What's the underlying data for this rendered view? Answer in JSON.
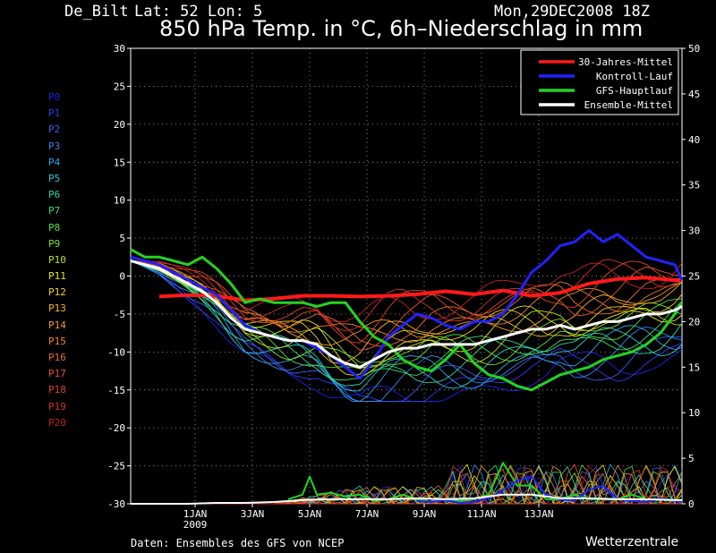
{
  "header": {
    "station": "De_Bilt",
    "coords": "Lat: 52 Lon: 5",
    "runtime": "Mon,29DEC2008 18Z",
    "title": "850 hPa Temp. in °C, 6h–Niederschlag in mm"
  },
  "footer": {
    "source": "Daten: Ensembles des GFS von NCEP",
    "brand": "Wetterzentrale"
  },
  "members": [
    {
      "label": "P0",
      "color": "#2020e8"
    },
    {
      "label": "P1",
      "color": "#2f3cf0"
    },
    {
      "label": "P2",
      "color": "#3a5cf4"
    },
    {
      "label": "P3",
      "color": "#2e86ec"
    },
    {
      "label": "P4",
      "color": "#2aa6e6"
    },
    {
      "label": "P5",
      "color": "#26c8d6"
    },
    {
      "label": "P6",
      "color": "#2ad8a6"
    },
    {
      "label": "P7",
      "color": "#3cdc6a"
    },
    {
      "label": "P8",
      "color": "#4ee040"
    },
    {
      "label": "P9",
      "color": "#7ae028"
    },
    {
      "label": "P10",
      "color": "#b8e41e"
    },
    {
      "label": "P11",
      "color": "#e6e41c"
    },
    {
      "label": "P12",
      "color": "#f0d020"
    },
    {
      "label": "P13",
      "color": "#f4b424"
    },
    {
      "label": "P14",
      "color": "#f49a2a"
    },
    {
      "label": "P15",
      "color": "#f0822c"
    },
    {
      "label": "P16",
      "color": "#ec6a2c"
    },
    {
      "label": "P17",
      "color": "#e6542a"
    },
    {
      "label": "P18",
      "color": "#de4228"
    },
    {
      "label": "P19",
      "color": "#d23226"
    },
    {
      "label": "P20",
      "color": "#c42222"
    }
  ],
  "chart_data": {
    "type": "line",
    "grid": true,
    "legend_position": "top-right",
    "x_range": [
      0,
      19.25
    ],
    "x_unit": "days after 29DEC2008 18Z",
    "x_ticks": [
      {
        "label": "1JAN",
        "x": 2.25
      },
      {
        "label": "3JAN",
        "x": 4.25
      },
      {
        "label": "5JAN",
        "x": 6.25
      },
      {
        "label": "7JAN",
        "x": 8.25
      },
      {
        "label": "9JAN",
        "x": 10.25
      },
      {
        "label": "11JAN",
        "x": 12.25
      },
      {
        "label": "13JAN",
        "x": 14.25
      }
    ],
    "x_year_label": {
      "label": "2009",
      "x": 2.25
    },
    "y_left": {
      "range": [
        -30,
        30
      ],
      "ticks": [
        -30,
        -25,
        -20,
        -15,
        -10,
        -5,
        0,
        5,
        10,
        15,
        20,
        25,
        30
      ]
    },
    "y_right": {
      "range": [
        0,
        50
      ],
      "ticks": [
        0,
        5,
        10,
        15,
        20,
        25,
        30,
        35,
        40,
        45,
        50
      ]
    },
    "legend": [
      {
        "label": "30-Jahres-Mittel",
        "color": "#ff1a1a"
      },
      {
        "label": "Kontroll-Lauf",
        "color": "#2222ff"
      },
      {
        "label": "GFS-Hauptlauf",
        "color": "#22d422"
      },
      {
        "label": "Ensemble-Mittel",
        "color": "#ffffff"
      }
    ],
    "series": [
      {
        "name": "30-Jahres-Mittel",
        "color": "#ff1a1a",
        "width": 4,
        "axis": "left",
        "x": [
          1,
          2,
          3,
          4,
          5,
          6,
          7,
          8,
          9,
          10,
          11,
          12,
          13,
          14,
          15,
          16,
          17,
          18,
          19.2
        ],
        "y": [
          -2.7,
          -2.5,
          -2.6,
          -3.2,
          -3.0,
          -2.6,
          -2.6,
          -2.7,
          -2.6,
          -2.4,
          -2.0,
          -2.4,
          -1.9,
          -2.6,
          -2.2,
          -1.0,
          -0.4,
          -0.2,
          -0.6
        ]
      },
      {
        "name": "Kontroll-Lauf",
        "color": "#2222ff",
        "width": 3,
        "axis": "left",
        "x": [
          0,
          0.5,
          1,
          1.5,
          2,
          2.5,
          3,
          3.5,
          4,
          4.5,
          5,
          5.5,
          6,
          6.5,
          7,
          7.5,
          8,
          8.5,
          9,
          9.5,
          10,
          10.5,
          11,
          11.5,
          12,
          12.5,
          13,
          13.5,
          14,
          14.5,
          15,
          15.5,
          16,
          16.5,
          17,
          17.5,
          18,
          18.5,
          19,
          19.25
        ],
        "y": [
          2.5,
          2.0,
          1.5,
          0.5,
          -0.5,
          -1.5,
          -2.5,
          -4.5,
          -6.5,
          -7.5,
          -8.0,
          -8.5,
          -8.5,
          -9.5,
          -10.5,
          -12.0,
          -13.5,
          -11.0,
          -8.0,
          -6.5,
          -5.0,
          -5.5,
          -6.5,
          -7.0,
          -6.0,
          -6.0,
          -5.0,
          -2.5,
          0.5,
          2.0,
          4.0,
          4.5,
          6.0,
          4.5,
          5.5,
          4.0,
          2.5,
          2.0,
          1.5,
          -0.5
        ]
      },
      {
        "name": "GFS-Hauptlauf",
        "color": "#22d422",
        "width": 3,
        "axis": "left",
        "x": [
          0,
          0.5,
          1,
          1.5,
          2,
          2.5,
          3,
          3.5,
          4,
          4.5,
          5,
          5.5,
          6,
          6.5,
          7,
          7.5,
          8,
          8.5,
          9,
          9.5,
          10,
          10.5,
          11,
          11.5,
          12,
          12.5,
          13,
          13.5,
          14,
          14.5,
          15,
          15.5,
          16,
          16.5,
          17,
          17.5,
          18,
          18.5,
          19,
          19.25
        ],
        "y": [
          3.5,
          2.5,
          2.5,
          2.0,
          1.5,
          2.5,
          1.0,
          -1.0,
          -3.5,
          -3.0,
          -3.5,
          -3.5,
          -3.5,
          -4.0,
          -3.5,
          -3.5,
          -6.0,
          -8.0,
          -9.0,
          -11.0,
          -12.0,
          -12.5,
          -11.0,
          -9.0,
          -11.5,
          -13.0,
          -13.5,
          -14.5,
          -15.0,
          -14.0,
          -13.0,
          -12.5,
          -12.0,
          -11.0,
          -10.5,
          -10.0,
          -9.0,
          -7.5,
          -5.0,
          -3.5
        ]
      },
      {
        "name": "Ensemble-Mittel",
        "color": "#ffffff",
        "width": 3,
        "axis": "left",
        "x": [
          0,
          0.5,
          1,
          1.5,
          2,
          2.5,
          3,
          3.5,
          4,
          4.5,
          5,
          5.5,
          6,
          6.5,
          7,
          7.5,
          8,
          8.5,
          9,
          9.5,
          10,
          10.5,
          11,
          11.5,
          12,
          12.5,
          13,
          13.5,
          14,
          14.5,
          15,
          15.5,
          16,
          16.5,
          17,
          17.5,
          18,
          18.5,
          19,
          19.25
        ],
        "y": [
          2.0,
          1.5,
          1.0,
          0.0,
          -1.0,
          -2.0,
          -3.5,
          -5.5,
          -7.0,
          -7.5,
          -8.0,
          -8.5,
          -8.5,
          -9.0,
          -10.5,
          -11.5,
          -12.0,
          -11.0,
          -10.0,
          -9.5,
          -9.5,
          -9.0,
          -9.0,
          -9.0,
          -9.0,
          -8.5,
          -8.0,
          -7.5,
          -7.0,
          -7.0,
          -6.5,
          -7.0,
          -6.5,
          -6.0,
          -6.0,
          -5.5,
          -5.0,
          -5.0,
          -4.5,
          -4.0
        ]
      },
      {
        "name": "GFS-Hauptlauf",
        "color": "#22d422",
        "width": 2,
        "axis": "right",
        "x": [
          5.5,
          6,
          6.25,
          6.5,
          7,
          7.5,
          8,
          8.5,
          9,
          9.5,
          10,
          10.5,
          11,
          11.5,
          12,
          12.5,
          13,
          13.5,
          14,
          14.5,
          15,
          15.5,
          16,
          16.5,
          17,
          17.5,
          18,
          18.5,
          19,
          19.25
        ],
        "y": [
          0.5,
          1.0,
          3.0,
          1.0,
          1.2,
          0.8,
          1.0,
          0.3,
          0.5,
          1.0,
          0.5,
          0.2,
          0.5,
          0.3,
          0.5,
          1.0,
          4.5,
          2.0,
          2.0,
          0.5,
          0.5,
          1.0,
          0.5,
          0.5,
          0.5,
          1.0,
          0.5,
          0.5,
          0.3,
          0.2
        ]
      },
      {
        "name": "Kontroll-Lauf",
        "color": "#2222ff",
        "width": 2,
        "axis": "right",
        "x": [
          10,
          10.5,
          11,
          11.5,
          12,
          12.5,
          13,
          13.5,
          14,
          14.5,
          15,
          15.5,
          16,
          16.5,
          17,
          17.5,
          18,
          18.5,
          19,
          19.25
        ],
        "y": [
          0.3,
          0.2,
          0.4,
          0.1,
          0.2,
          0.6,
          1.5,
          2.5,
          3.0,
          1.0,
          0.5,
          0.3,
          1.5,
          2.0,
          0.5,
          0.3,
          0.2,
          0.6,
          0.3,
          0.2
        ]
      },
      {
        "name": "Ensemble-Mittel",
        "color": "#ffffff",
        "width": 2,
        "axis": "right",
        "x": [
          0,
          1,
          2,
          3,
          4,
          5,
          6,
          7,
          8,
          9,
          10,
          11,
          12,
          13,
          14,
          15,
          16,
          17,
          18,
          19,
          19.25
        ],
        "y": [
          0,
          0,
          0,
          0.1,
          0.1,
          0.2,
          0.4,
          0.5,
          0.5,
          0.5,
          0.6,
          0.5,
          0.6,
          1.0,
          1.0,
          0.6,
          0.6,
          0.5,
          0.5,
          0.4,
          0.4
        ]
      }
    ]
  }
}
